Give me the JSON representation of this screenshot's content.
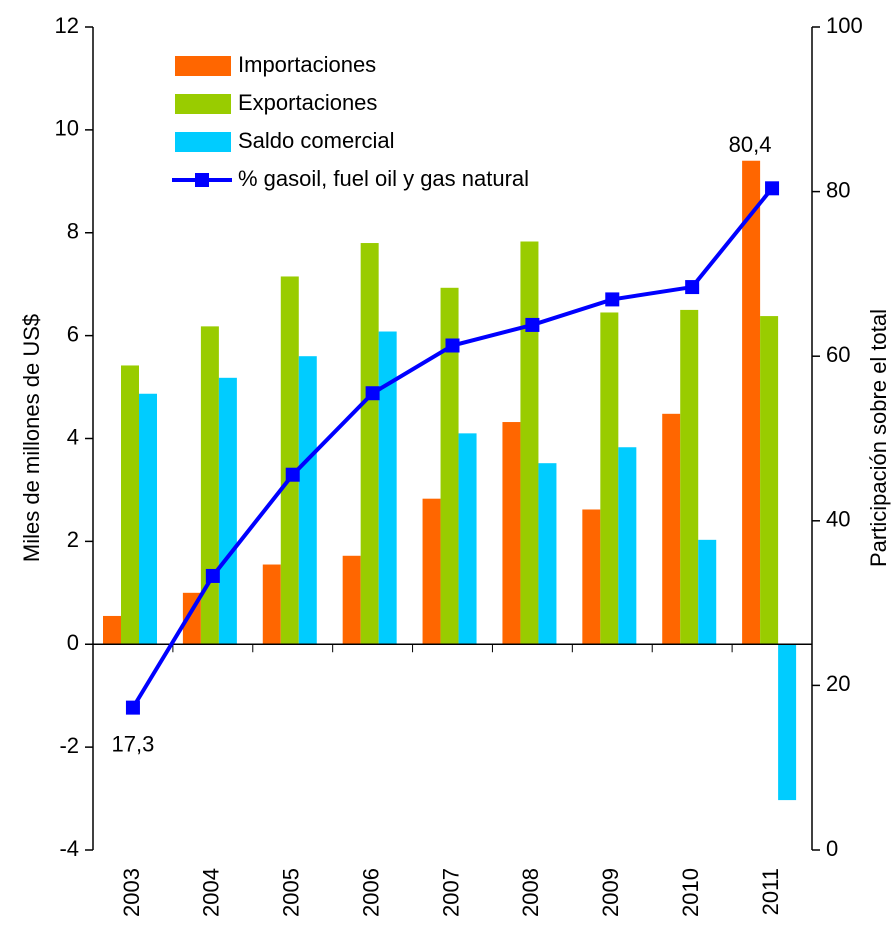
{
  "chart_data": {
    "type": "bar",
    "y_label": "Miles de millones de US$",
    "y2_label": "Participación sobre el total",
    "categories": [
      "2003",
      "2004",
      "2005",
      "2006",
      "2007",
      "2008",
      "2009",
      "2010",
      "2011"
    ],
    "series": [
      {
        "name": "Importaciones",
        "color": "#ff6600",
        "values": [
          0.55,
          1.0,
          1.55,
          1.72,
          2.83,
          4.32,
          2.62,
          4.48,
          9.4
        ]
      },
      {
        "name": "Exportaciones",
        "color": "#99cc00",
        "values": [
          5.42,
          6.18,
          7.15,
          7.8,
          6.93,
          7.83,
          6.45,
          6.5,
          6.38
        ]
      },
      {
        "name": "Saldo comercial",
        "color": "#00ccff",
        "values": [
          4.87,
          5.18,
          5.6,
          6.08,
          4.1,
          3.52,
          3.83,
          2.03,
          -3.03
        ]
      },
      {
        "name": "% gasoil, fuel oil y gas natural",
        "type": "line",
        "axis": "y2",
        "color": "#0000ff",
        "values": [
          17.3,
          33.3,
          45.6,
          55.5,
          61.3,
          63.8,
          66.9,
          68.4,
          80.4
        ],
        "value_labels": [
          "17,3",
          null,
          null,
          null,
          null,
          null,
          null,
          null,
          "80,4"
        ]
      }
    ],
    "ylim": [
      -4,
      12
    ],
    "yticks": [
      -4,
      -2,
      0,
      2,
      4,
      6,
      8,
      10,
      12
    ],
    "y2lim": [
      0,
      100
    ],
    "y2ticks": [
      0,
      20,
      40,
      60,
      80,
      100
    ],
    "legend": "upper-left"
  }
}
